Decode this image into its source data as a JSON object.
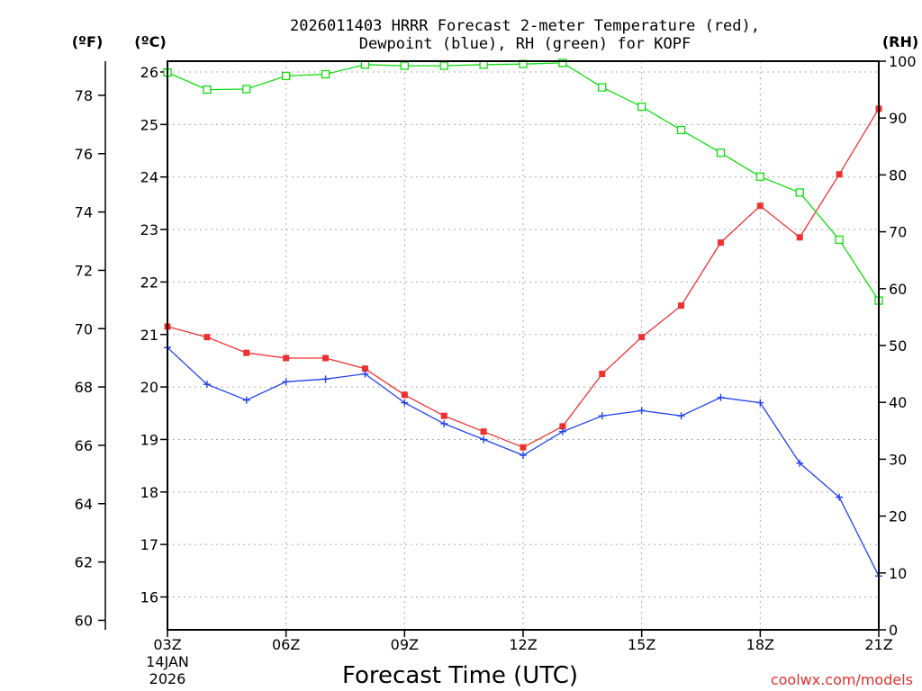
{
  "chart_data": {
    "type": "line",
    "title_line1": "2026011403 HRRR Forecast 2-meter Temperature (red),",
    "title_line2": "Dewpoint (blue), RH (green) for KOPF",
    "xlabel": "Forecast Time (UTC)",
    "credit": "coolwx.com/models",
    "units": {
      "fahrenheit": "(ºF)",
      "celsius": "(ºC)",
      "rh": "(RH)"
    },
    "x": [
      3,
      4,
      5,
      6,
      7,
      8,
      9,
      10,
      11,
      12,
      13,
      14,
      15,
      16,
      17,
      18,
      19,
      20,
      21
    ],
    "xlim": [
      3,
      21
    ],
    "x_ticks": [
      {
        "x": 3,
        "label": "03Z"
      },
      {
        "x": 6,
        "label": "06Z"
      },
      {
        "x": 9,
        "label": "09Z"
      },
      {
        "x": 12,
        "label": "12Z"
      },
      {
        "x": 15,
        "label": "15Z"
      },
      {
        "x": 18,
        "label": "18Z"
      },
      {
        "x": 21,
        "label": "21Z"
      }
    ],
    "x_date": [
      "14JAN",
      "2026"
    ],
    "celsius_ticks": [
      16,
      17,
      18,
      19,
      20,
      21,
      22,
      23,
      24,
      25,
      26
    ],
    "fahrenheit_ticks": [
      60,
      62,
      64,
      66,
      68,
      70,
      72,
      74,
      76,
      78
    ],
    "rh_ticks": [
      0,
      10,
      20,
      30,
      40,
      50,
      60,
      70,
      80,
      90,
      100
    ],
    "rh_lim": [
      0,
      100
    ],
    "series": [
      {
        "name": "2-meter Temperature",
        "unit": "C",
        "color": "#ee3030",
        "marker": "square",
        "values": [
          21.15,
          20.95,
          20.65,
          20.55,
          20.55,
          20.35,
          19.85,
          19.45,
          19.15,
          18.85,
          19.25,
          20.25,
          20.95,
          21.55,
          22.75,
          23.45,
          22.85,
          24.05,
          25.3
        ]
      },
      {
        "name": "Dewpoint",
        "unit": "C",
        "color": "#2040ee",
        "marker": "plus",
        "values": [
          20.75,
          20.05,
          19.75,
          20.1,
          20.15,
          20.25,
          19.7,
          19.3,
          19.0,
          18.7,
          19.15,
          19.45,
          19.55,
          19.45,
          19.8,
          19.7,
          18.55,
          17.9,
          16.4
        ]
      },
      {
        "name": "RH",
        "unit": "%",
        "color": "#10dd10",
        "marker": "open-square",
        "values": [
          98.0,
          95.0,
          95.1,
          97.4,
          97.7,
          99.4,
          99.2,
          99.2,
          99.4,
          99.5,
          99.7,
          95.4,
          92.0,
          87.9,
          83.9,
          79.7,
          76.9,
          68.6,
          57.9
        ]
      }
    ]
  }
}
